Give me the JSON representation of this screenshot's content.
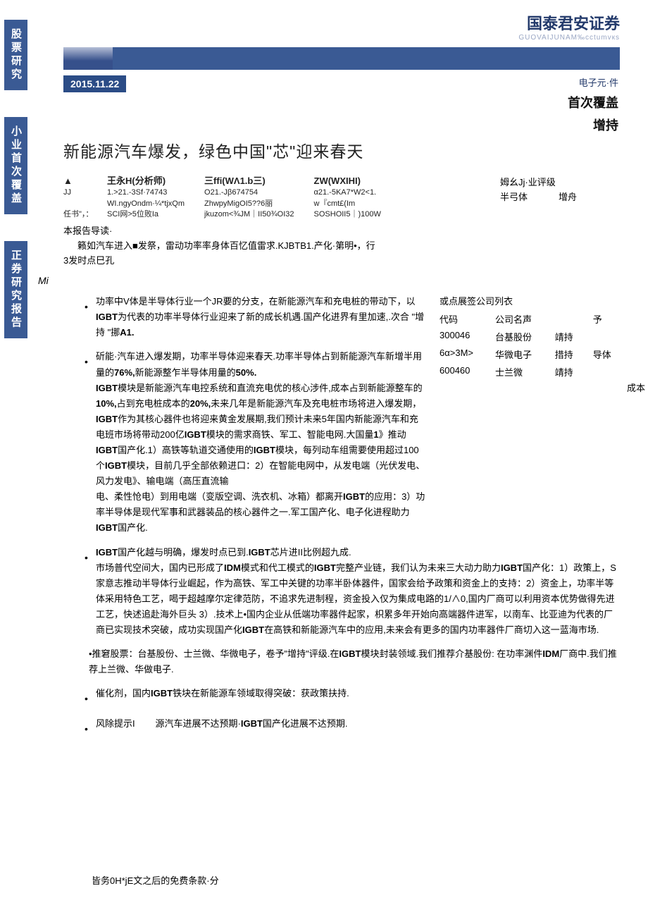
{
  "side_tabs": [
    "股票研究",
    "小业首次覆盖",
    "正券研究报告"
  ],
  "brand": {
    "cn": "国泰君安证券",
    "en": "GUOVAIJUNAM‰cctumvкs"
  },
  "date": "2015.11.22",
  "category": "电子元·件",
  "coverage": "首次覆盖",
  "rating": "增持",
  "title": "新能源汽车爆发，绿色中国\"芯\"迎来春天",
  "analysts": [
    {
      "name": "王永H(分析师)",
      "line1": "1.>21.-3Sf·74743",
      "line2": "WI.ngyOndm·¼*tjxQm",
      "line3": "SCI网>5位败Ia"
    },
    {
      "name": "三ffi(WΛ1.b三)",
      "line1": "O21.-Jβ674754",
      "line2": "ZhwpyMigOI5??6丽",
      "line3": "jkuzom<¾JM｜II50¾OI32"
    },
    {
      "name": "ZW(WXIHI)",
      "line1": "α21.-5KA7*W2<1.",
      "line2": "w『cmt£(Im",
      "line3": "SOSHOII5｜)100W"
    }
  ],
  "prefix_labels": {
    "jj": "JJ",
    "renshu": "任书\"，："
  },
  "rating_box": {
    "header": "姆幺Jj·业评级",
    "row_label": "半弓体",
    "row_val": "增舟"
  },
  "intro": {
    "label": "本报告导读·",
    "body": "籁如汽车进入■发祭，雷动功率率身体百忆值雷求.KJBTB1.产化·第明•，行",
    "body2": "3发时点巳孔",
    "sub": "Mi"
  },
  "ft": {
    "title": "或点展签公司列衣",
    "header": [
      "代码",
      "公司名声",
      "",
      "予"
    ],
    "rows": [
      [
        "300046",
        "台基股份",
        "靖持",
        ""
      ],
      [
        "6α>3M>",
        "华微电子",
        "措持",
        "导体"
      ],
      [
        "600460",
        "士兰微",
        "靖持",
        ""
      ]
    ],
    "trailing": "成本"
  },
  "bullets": [
    "功率中V体是半导体行业一个JR要的分支，在新能源汽车和充电桩的带动下，以<b>IGBT</b>为代表的功率半导体行业迎来了新的成长机遇.国产化进界有里加速,.次合 \"增持 \"挪<b>A1.</b>",
    "斫能·汽车进入爆发期，功率半导体迎来春天.功率半导体占到新能源汽车新增半用量的<b>76%,</b>新能源整乍半导体用量的<b>50%.</b><br><b>IGBT</b>模块是新能源汽车电控系统和直流充电优的核心涉件,成本占到新能源整车的<b>10%,</b>占到充电桩成本的<b>20%,</b>未来几年是新能源汽车及充电桩市场将进入爆发期，<b>IGBT</b>作为其核心器件也将迎来黄金发展期,我们预计未来5年国内新能源汽车和充电班市场将带动200亿<b>IGBT</b>模块的需求商铁、军工、智能电网.大国量<b>1</b>》推动<b>IGBT</b>国产化.1）高铁等轨道交通使用的<b>IGBT</b>模块，每列动车组需要使用超过100个<b>IGBT</b>模块，目前几乎全部依赖进口：2）在智能电网中，从发电端（光伏发电、风力发电》、输电端（高压直流输<br>电、柔性怆电）到用电端（变版空调、洗衣机、冰箱）都离开<b>IGBT</b>的应用：3）功率半导体是现代军事和武器装品的核心器件之一.军工国产化、电子化进程助力<b>IGBT</b>国产化.",
    "<b>IGBT</b>国产化越与明确，爆发时点已到.<b>IGBT</b>芯片进II比例超九成.<br>市场普代空间大，国内已形成了<b>IDM</b>模式和代工模式的<b>IGBT</b>完整产业链，我们认为未来三大动力助力<b>IGBT</b>国产化：1）政策上，S家意志推动半导体行业崛起，作为高铁、军工中关键的功率半卧体器件，国家会给予政策和资金上的支持：2）资金上，功率半等体采用特色工艺，喝于超越摩尔定律范防，不追求先进制程，资金投入仅为集成电路的1/∧0,国内厂商可以利用资本优势做得先进工艺，快述追赴海外巨头 3）.技术上•国内企业从低端功率器件起家，枳累多年开始向高端器件进军，以南车、比亚迪为代表的厂商已实现技术突破，成功实现国产化<b>IGBT</b>在高铁和新能源汽车中的应用,未来会有更多的国内功率器件厂商切入这一蓝海市场.",
    "•推窘股票：台基股份、士兰微、华微电子，卷予\"增持\"评级.在<b>IGBT</b>模块封装领域.我们推荐介基股份: 在功率渊件<b>IDM</b>厂商中.我们推荐上兰微、华做电子.",
    "催化剂，国内<b>IGBT</b>铁块在新能源车领域取得突破：获政策扶持.",
    "风除提示I&nbsp;&nbsp;&nbsp;&nbsp;&nbsp;&nbsp;&nbsp;&nbsp;源汽车进展不达预期·<b>IGBT</b>国产化进展不达预期."
  ],
  "footer": "皆务0H*jE文之后的免费条款·分"
}
